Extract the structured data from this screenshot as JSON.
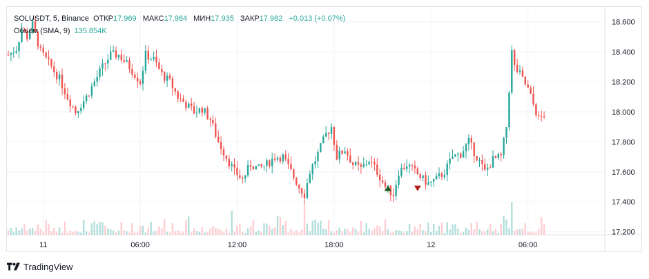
{
  "legend": {
    "symbol": "SOLUSDT, 5, Binance",
    "open_label": "ОТКР",
    "open": "17.969",
    "high_label": "МАКС",
    "high": "17.984",
    "low_label": "МИН",
    "low": "17.935",
    "close_label": "ЗАКР",
    "close": "17.982",
    "change": "+0.013 (+0.07%)",
    "volume_label": "Объём (SMA, 9)",
    "volume": "135.854K"
  },
  "footer": {
    "brand": "TradingView",
    "logo_icon": "tradingview-logo-icon"
  },
  "colors": {
    "up": "#26a69a",
    "down": "#ef5350",
    "grid": "#f0f3fa",
    "up_volume": "#b2dfdb",
    "down_volume": "#ffcdd2",
    "buy_marker": "#1b5e20",
    "sell_marker": "#b71c1c"
  },
  "chart_data": {
    "type": "candlestick",
    "ylim": [
      17.18,
      18.7
    ],
    "y_ticks": [
      "18.600",
      "18.400",
      "18.200",
      "18.000",
      "17.800",
      "17.600",
      "17.400",
      "17.200"
    ],
    "x_ticks": [
      "11",
      "06:00",
      "12:00",
      "18:00",
      "12",
      "06:00"
    ],
    "x_ticks_index": [
      13,
      49,
      85,
      121,
      157,
      193
    ],
    "anchors": [
      [
        0,
        18.38
      ],
      [
        3,
        18.42
      ],
      [
        5,
        18.55
      ],
      [
        7,
        18.5
      ],
      [
        9,
        18.58
      ],
      [
        12,
        18.4
      ],
      [
        16,
        18.3
      ],
      [
        19,
        18.22
      ],
      [
        22,
        18.1
      ],
      [
        25,
        18.0
      ],
      [
        29,
        18.1
      ],
      [
        32,
        18.2
      ],
      [
        35,
        18.3
      ],
      [
        38,
        18.38
      ],
      [
        41,
        18.38
      ],
      [
        45,
        18.3
      ],
      [
        49,
        18.2
      ],
      [
        51,
        18.38
      ],
      [
        54,
        18.35
      ],
      [
        57,
        18.25
      ],
      [
        60,
        18.2
      ],
      [
        63,
        18.1
      ],
      [
        66,
        18.05
      ],
      [
        69,
        18.0
      ],
      [
        72,
        18.02
      ],
      [
        75,
        17.95
      ],
      [
        78,
        17.8
      ],
      [
        81,
        17.7
      ],
      [
        84,
        17.6
      ],
      [
        87,
        17.55
      ],
      [
        90,
        17.65
      ],
      [
        93,
        17.62
      ],
      [
        96,
        17.65
      ],
      [
        99,
        17.7
      ],
      [
        102,
        17.7
      ],
      [
        105,
        17.6
      ],
      [
        108,
        17.5
      ],
      [
        110,
        17.45
      ],
      [
        112,
        17.6
      ],
      [
        115,
        17.72
      ],
      [
        118,
        17.85
      ],
      [
        120,
        17.9
      ],
      [
        122,
        17.7
      ],
      [
        125,
        17.75
      ],
      [
        128,
        17.65
      ],
      [
        131,
        17.62
      ],
      [
        134,
        17.68
      ],
      [
        137,
        17.6
      ],
      [
        140,
        17.5
      ],
      [
        143,
        17.45
      ],
      [
        145,
        17.6
      ],
      [
        148,
        17.65
      ],
      [
        151,
        17.6
      ],
      [
        154,
        17.55
      ],
      [
        156,
        17.52
      ],
      [
        159,
        17.55
      ],
      [
        162,
        17.6
      ],
      [
        165,
        17.7
      ],
      [
        168,
        17.72
      ],
      [
        171,
        17.8
      ],
      [
        174,
        17.7
      ],
      [
        177,
        17.6
      ],
      [
        180,
        17.68
      ],
      [
        183,
        17.7
      ],
      [
        185,
        17.9
      ],
      [
        186,
        18.15
      ],
      [
        187,
        18.4
      ],
      [
        188,
        18.3
      ],
      [
        190,
        18.25
      ],
      [
        193,
        18.15
      ],
      [
        195,
        18.05
      ],
      [
        197,
        17.95
      ],
      [
        199,
        17.98
      ]
    ],
    "candle_count": 200,
    "markers": [
      {
        "type": "buy",
        "index": 141,
        "price": 17.49
      },
      {
        "type": "sell",
        "index": 152,
        "price": 17.49
      }
    ]
  }
}
